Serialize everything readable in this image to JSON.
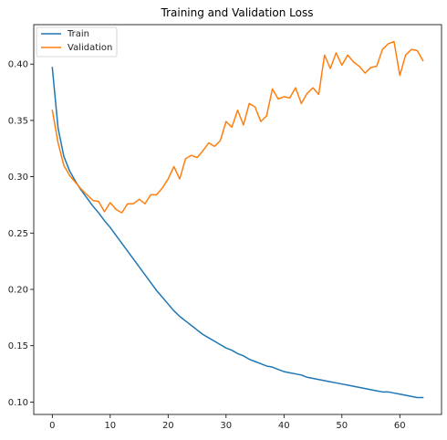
{
  "chart_data": {
    "type": "line",
    "title": "Training and Validation Loss",
    "xlabel": "",
    "ylabel": "",
    "xlim": [
      -3.2,
      67.2
    ],
    "ylim": [
      0.089,
      0.435
    ],
    "x_ticks": [
      0,
      10,
      20,
      30,
      40,
      50,
      60
    ],
    "y_ticks": [
      0.1,
      0.15,
      0.2,
      0.25,
      0.3,
      0.35,
      0.4
    ],
    "x_tick_labels": [
      "0",
      "10",
      "20",
      "30",
      "40",
      "50",
      "60"
    ],
    "y_tick_labels": [
      "0.10",
      "0.15",
      "0.20",
      "0.25",
      "0.30",
      "0.35",
      "0.40"
    ],
    "grid": false,
    "legend_position": "top-left",
    "x": [
      0,
      1,
      2,
      3,
      4,
      5,
      6,
      7,
      8,
      9,
      10,
      11,
      12,
      13,
      14,
      15,
      16,
      17,
      18,
      19,
      20,
      21,
      22,
      23,
      24,
      25,
      26,
      27,
      28,
      29,
      30,
      31,
      32,
      33,
      34,
      35,
      36,
      37,
      38,
      39,
      40,
      41,
      42,
      43,
      44,
      45,
      46,
      47,
      48,
      49,
      50,
      51,
      52,
      53,
      54,
      55,
      56,
      57,
      58,
      59,
      60,
      61,
      62,
      63,
      64
    ],
    "series": [
      {
        "name": "Train",
        "color": "#1f77b4",
        "values": [
          0.397,
          0.343,
          0.318,
          0.305,
          0.296,
          0.288,
          0.281,
          0.274,
          0.268,
          0.261,
          0.255,
          0.248,
          0.241,
          0.234,
          0.227,
          0.22,
          0.213,
          0.206,
          0.199,
          0.193,
          0.187,
          0.181,
          0.176,
          0.172,
          0.168,
          0.164,
          0.16,
          0.157,
          0.154,
          0.151,
          0.148,
          0.146,
          0.143,
          0.141,
          0.138,
          0.136,
          0.134,
          0.132,
          0.131,
          0.129,
          0.127,
          0.126,
          0.125,
          0.124,
          0.122,
          0.121,
          0.12,
          0.119,
          0.118,
          0.117,
          0.116,
          0.115,
          0.114,
          0.113,
          0.112,
          0.111,
          0.11,
          0.109,
          0.109,
          0.108,
          0.107,
          0.106,
          0.105,
          0.104,
          0.104
        ]
      },
      {
        "name": "Validation",
        "color": "#ff7f0e",
        "values": [
          0.359,
          0.33,
          0.31,
          0.301,
          0.295,
          0.289,
          0.284,
          0.279,
          0.278,
          0.269,
          0.277,
          0.271,
          0.268,
          0.276,
          0.276,
          0.28,
          0.276,
          0.284,
          0.284,
          0.29,
          0.298,
          0.309,
          0.298,
          0.316,
          0.319,
          0.317,
          0.323,
          0.33,
          0.327,
          0.332,
          0.349,
          0.344,
          0.359,
          0.346,
          0.365,
          0.362,
          0.349,
          0.354,
          0.378,
          0.369,
          0.371,
          0.37,
          0.379,
          0.365,
          0.374,
          0.379,
          0.373,
          0.408,
          0.396,
          0.41,
          0.399,
          0.408,
          0.402,
          0.398,
          0.392,
          0.397,
          0.398,
          0.413,
          0.418,
          0.42,
          0.39,
          0.408,
          0.413,
          0.412,
          0.403
        ]
      }
    ]
  }
}
